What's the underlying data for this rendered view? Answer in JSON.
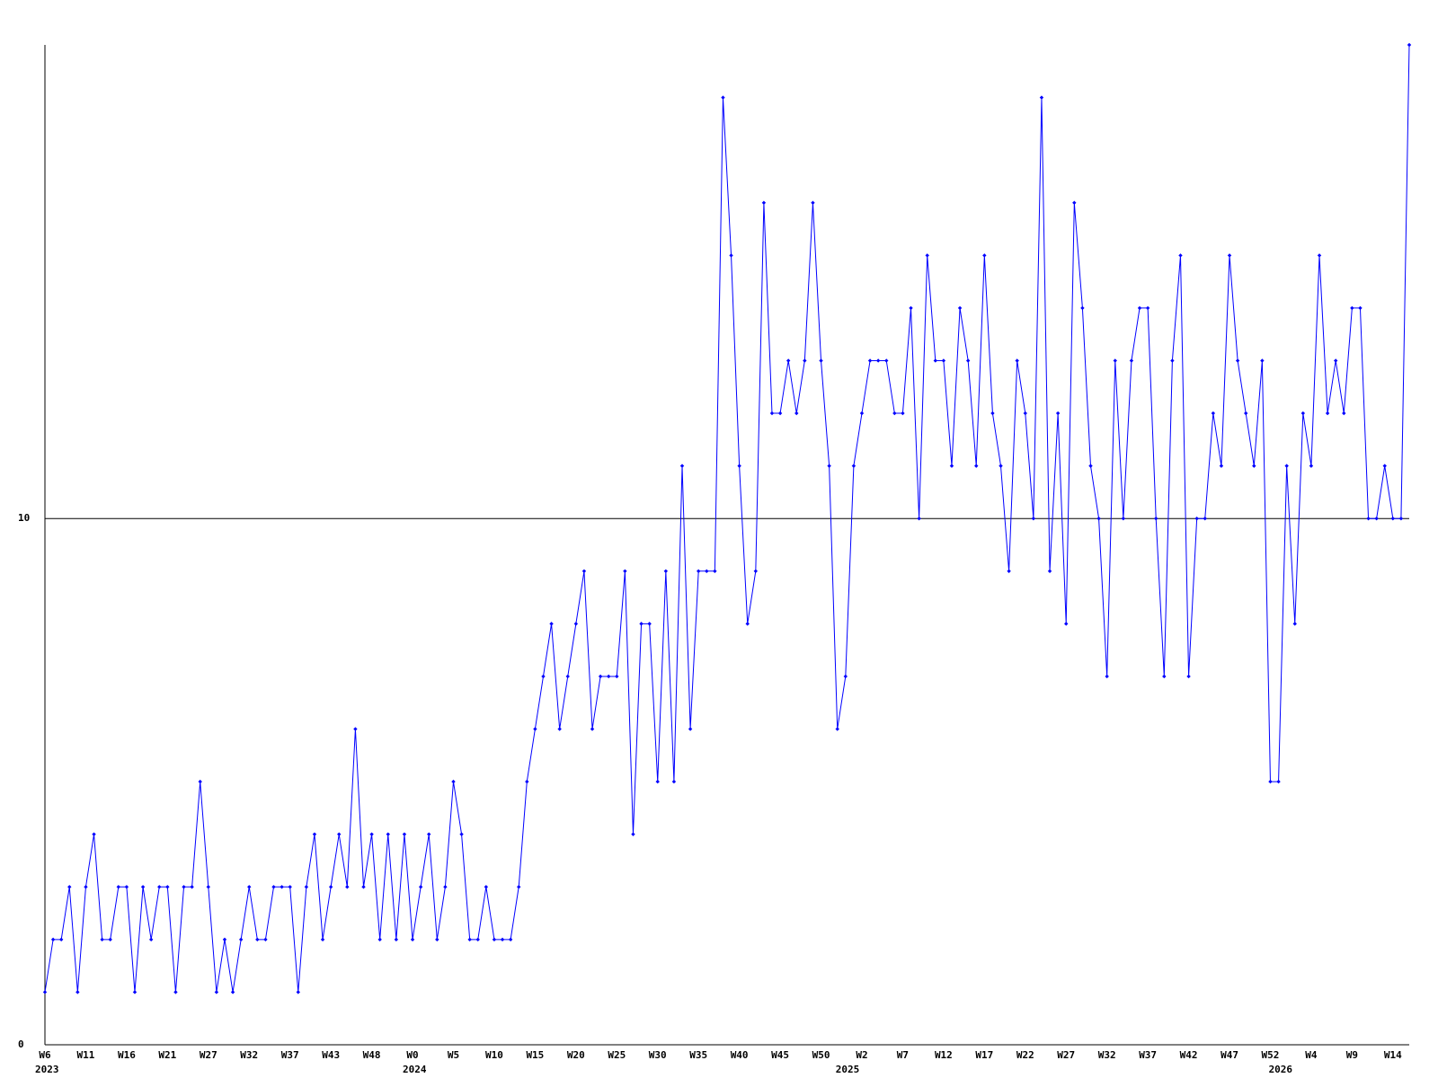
{
  "chart_data": {
    "type": "line",
    "categories": [
      "W6",
      null,
      null,
      null,
      null,
      "W11",
      null,
      null,
      null,
      null,
      "W16",
      null,
      null,
      null,
      null,
      "W21",
      null,
      null,
      null,
      null,
      "W27",
      null,
      null,
      null,
      null,
      "W32",
      null,
      null,
      null,
      null,
      "W37",
      null,
      null,
      null,
      null,
      "W43",
      null,
      null,
      null,
      null,
      "W48",
      null,
      null,
      null,
      null,
      "W0",
      null,
      null,
      null,
      null,
      "W5",
      null,
      null,
      null,
      null,
      "W10",
      null,
      null,
      null,
      null,
      "W15",
      null,
      null,
      null,
      null,
      "W20",
      null,
      null,
      null,
      null,
      "W25",
      null,
      null,
      null,
      null,
      "W30",
      null,
      null,
      null,
      null,
      "W35",
      null,
      null,
      null,
      null,
      "W40",
      null,
      null,
      null,
      null,
      "W45",
      null,
      null,
      null,
      null,
      "W50",
      null,
      null,
      null,
      null,
      "W2",
      null,
      null,
      null,
      null,
      "W7",
      null,
      null,
      null,
      null,
      "W12",
      null,
      null,
      null,
      null,
      "W17",
      null,
      null,
      null,
      null,
      "W22",
      null,
      null,
      null,
      null,
      "W27",
      null,
      null,
      null,
      null,
      "W32",
      null,
      null,
      null,
      null,
      "W37",
      null,
      null,
      null,
      null,
      "W42",
      null,
      null,
      null,
      null,
      "W47",
      null,
      null,
      null,
      null,
      "W52",
      null,
      null,
      null,
      null,
      "W4",
      null,
      null,
      null,
      null,
      "W9",
      null,
      null,
      null,
      null,
      "W14",
      null,
      null
    ],
    "year_labels": [
      {
        "at": 0,
        "label": "2023"
      },
      {
        "at": 45,
        "label": "2024"
      },
      {
        "at": 98,
        "label": "2025"
      },
      {
        "at": 151,
        "label": "2026"
      }
    ],
    "values": [
      1,
      2,
      2,
      3,
      1,
      3,
      4,
      2,
      2,
      3,
      3,
      1,
      3,
      2,
      3,
      3,
      1,
      3,
      3,
      5,
      3,
      1,
      2,
      1,
      2,
      3,
      2,
      2,
      3,
      3,
      3,
      1,
      3,
      4,
      2,
      3,
      4,
      3,
      6,
      3,
      4,
      2,
      4,
      2,
      4,
      2,
      3,
      4,
      2,
      3,
      5,
      4,
      2,
      2,
      3,
      2,
      2,
      2,
      3,
      5,
      6,
      7,
      8,
      6,
      7,
      8,
      9,
      6,
      7,
      7,
      7,
      9,
      4,
      8,
      8,
      5,
      9,
      5,
      11,
      6,
      9,
      9,
      9,
      18,
      15,
      11,
      8,
      9,
      16,
      12,
      12,
      13,
      12,
      13,
      16,
      13,
      11,
      6,
      7,
      11,
      12,
      13,
      13,
      13,
      12,
      12,
      14,
      10,
      15,
      13,
      13,
      11,
      14,
      13,
      11,
      15,
      12,
      11,
      9,
      13,
      12,
      10,
      18,
      9,
      12,
      8,
      16,
      14,
      11,
      10,
      7,
      13,
      10,
      13,
      14,
      14,
      10,
      7,
      13,
      15,
      7,
      10,
      10,
      12,
      11,
      15,
      13,
      12,
      11,
      13,
      5,
      5,
      11,
      8,
      12,
      11,
      15,
      12,
      13,
      12,
      14,
      14,
      10,
      10,
      11,
      10,
      10,
      19
    ],
    "color": "#0000ff",
    "ylim": [
      0,
      19
    ],
    "yticks": [
      0,
      10
    ],
    "grid": true
  }
}
